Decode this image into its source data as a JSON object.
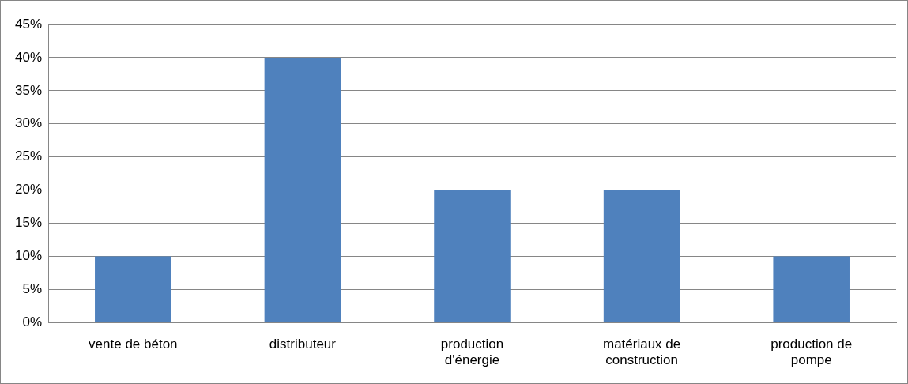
{
  "chart_data": {
    "type": "bar",
    "categories": [
      "vente de béton",
      "distributeur",
      "production d'énergie",
      "matériaux de construction",
      "production de pompe"
    ],
    "values": [
      10,
      40,
      20,
      20,
      10
    ],
    "color": "#4f81bd",
    "ylim": [
      0,
      45
    ],
    "yticks": [
      {
        "value": 0,
        "label": "0%"
      },
      {
        "value": 5,
        "label": "5%"
      },
      {
        "value": 10,
        "label": "10%"
      },
      {
        "value": 15,
        "label": "15%"
      },
      {
        "value": 20,
        "label": "20%"
      },
      {
        "value": 25,
        "label": "25%"
      },
      {
        "value": 30,
        "label": "30%"
      },
      {
        "value": 35,
        "label": "35%"
      },
      {
        "value": 40,
        "label": "40%"
      },
      {
        "value": 45,
        "label": "45%"
      }
    ],
    "grid": "y",
    "legend": false
  }
}
